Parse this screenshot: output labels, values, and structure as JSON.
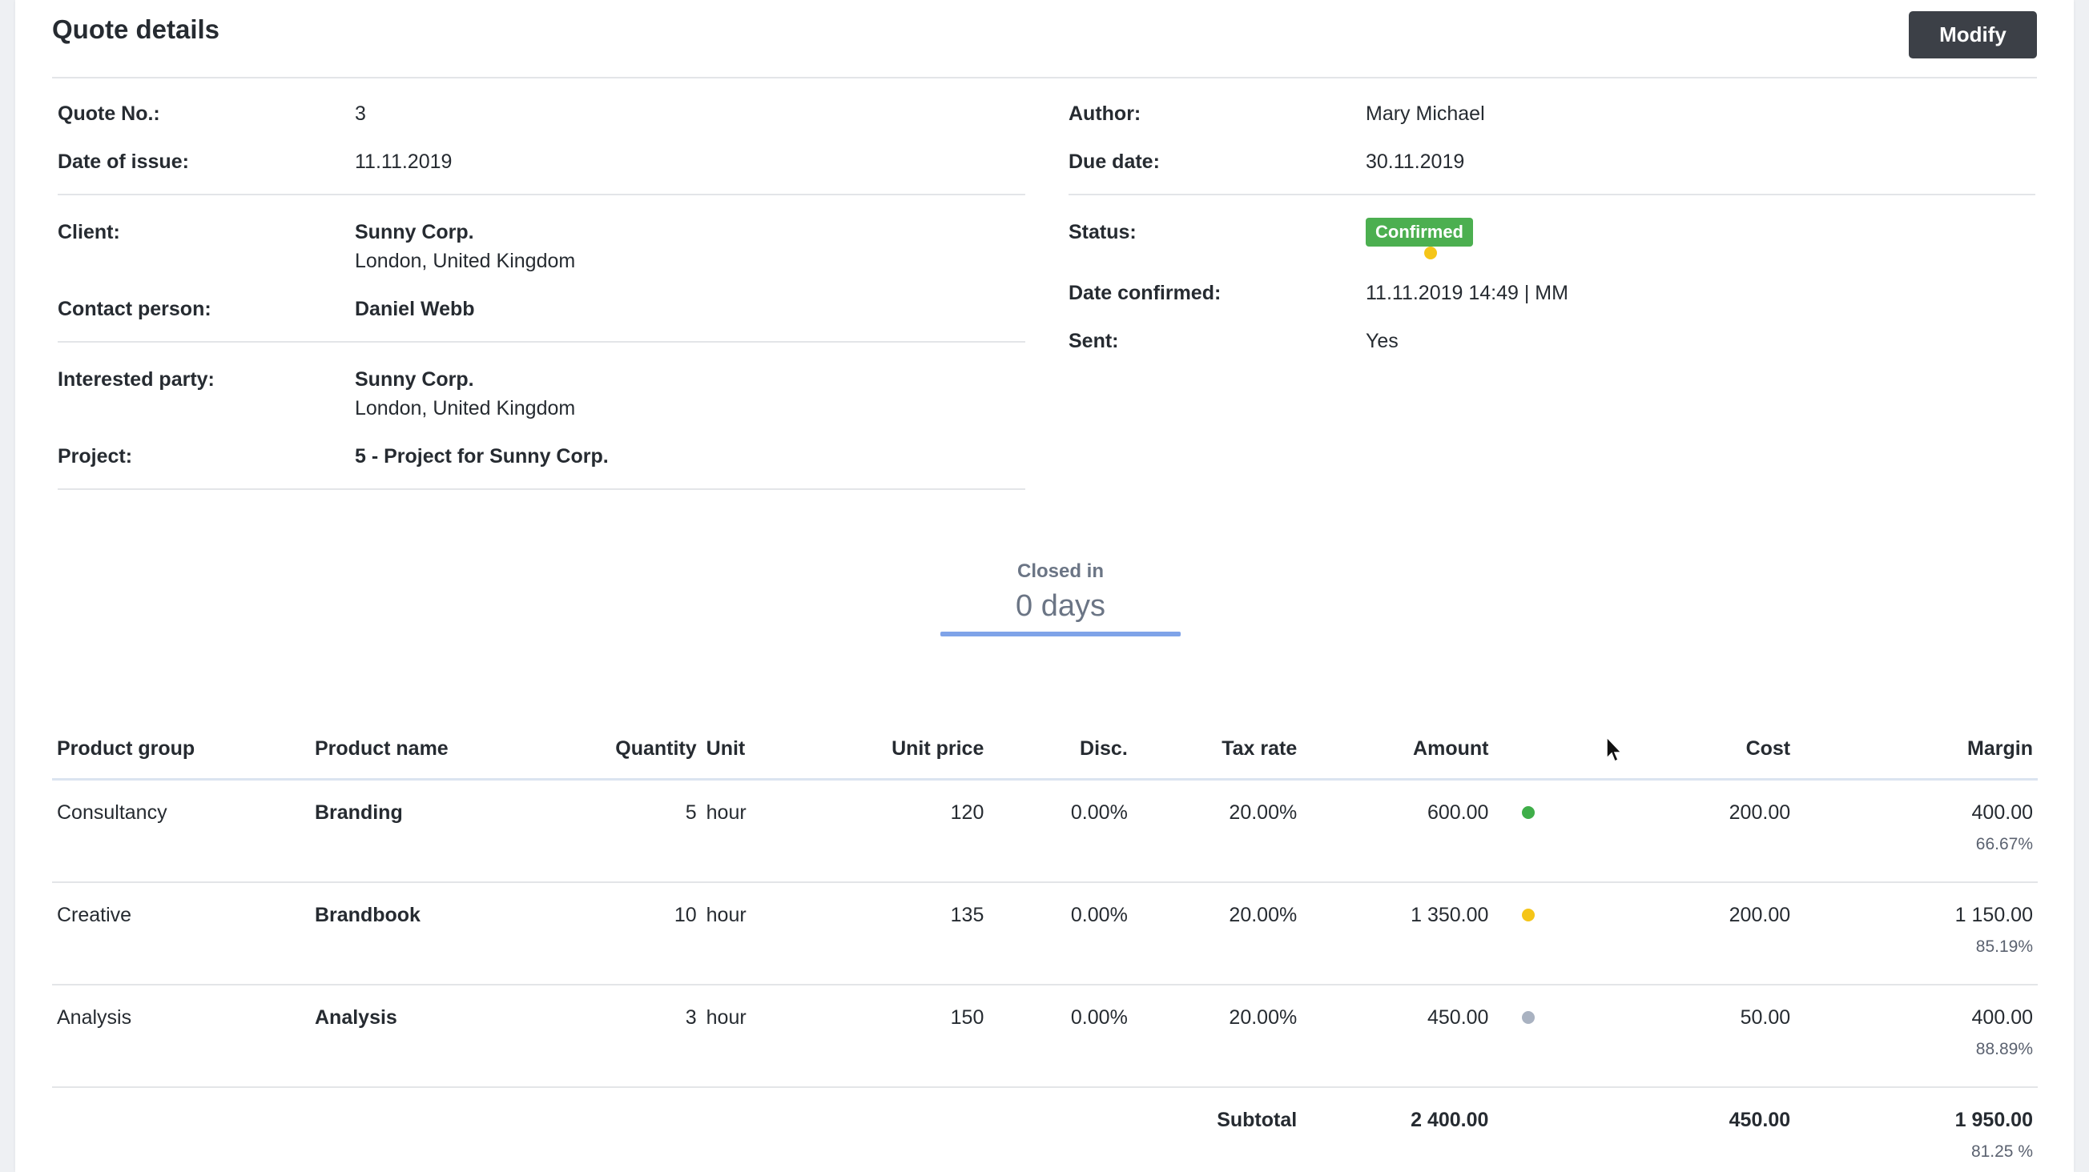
{
  "header": {
    "title": "Quote details",
    "modify_label": "Modify"
  },
  "left": {
    "quote_no": {
      "label": "Quote No.:",
      "value": "3"
    },
    "date_of_issue": {
      "label": "Date of issue:",
      "value": "11.11.2019"
    },
    "client": {
      "label": "Client:",
      "name": "Sunny Corp.",
      "location": "London, United Kingdom"
    },
    "contact_person": {
      "label": "Contact person:",
      "value": "Daniel Webb"
    },
    "interested_party": {
      "label": "Interested party:",
      "name": "Sunny Corp.",
      "location": "London, United Kingdom"
    },
    "project": {
      "label": "Project:",
      "value": "5 - Project for Sunny Corp."
    }
  },
  "right": {
    "author": {
      "label": "Author:",
      "value": "Mary Michael"
    },
    "due_date": {
      "label": "Due date:",
      "value": "30.11.2019"
    },
    "status": {
      "label": "Status:",
      "value": "Confirmed",
      "badge_color": "#4caf50",
      "dot_color": "#f5c518"
    },
    "date_confirmed": {
      "label": "Date confirmed:",
      "value": "11.11.2019 14:49 | MM"
    },
    "sent": {
      "label": "Sent:",
      "value": "Yes"
    }
  },
  "closed": {
    "label": "Closed in",
    "value": "0 days"
  },
  "table": {
    "columns": {
      "product_group": "Product group",
      "product_name": "Product name",
      "quantity": "Quantity",
      "unit": "Unit",
      "unit_price": "Unit price",
      "disc": "Disc.",
      "tax_rate": "Tax rate",
      "amount": "Amount",
      "cost": "Cost",
      "margin": "Margin"
    },
    "rows": [
      {
        "group": "Consultancy",
        "name": "Branding",
        "quantity": "5",
        "unit": "hour",
        "unit_price": "120",
        "disc": "0.00%",
        "tax_rate": "20.00%",
        "amount": "600.00",
        "dot_color": "#3fae49",
        "cost": "200.00",
        "margin": "400.00",
        "margin_pct": "66.67%"
      },
      {
        "group": "Creative",
        "name": "Brandbook",
        "quantity": "10",
        "unit": "hour",
        "unit_price": "135",
        "disc": "0.00%",
        "tax_rate": "20.00%",
        "amount": "1 350.00",
        "dot_color": "#f5c518",
        "cost": "200.00",
        "margin": "1 150.00",
        "margin_pct": "85.19%"
      },
      {
        "group": "Analysis",
        "name": "Analysis",
        "quantity": "3",
        "unit": "hour",
        "unit_price": "150",
        "disc": "0.00%",
        "tax_rate": "20.00%",
        "amount": "450.00",
        "dot_color": "#a9b2c1",
        "cost": "50.00",
        "margin": "400.00",
        "margin_pct": "88.89%"
      }
    ],
    "subtotal": {
      "label": "Subtotal",
      "amount": "2 400.00",
      "cost": "450.00",
      "margin": "1 950.00",
      "margin_pct": "81.25 %"
    }
  }
}
